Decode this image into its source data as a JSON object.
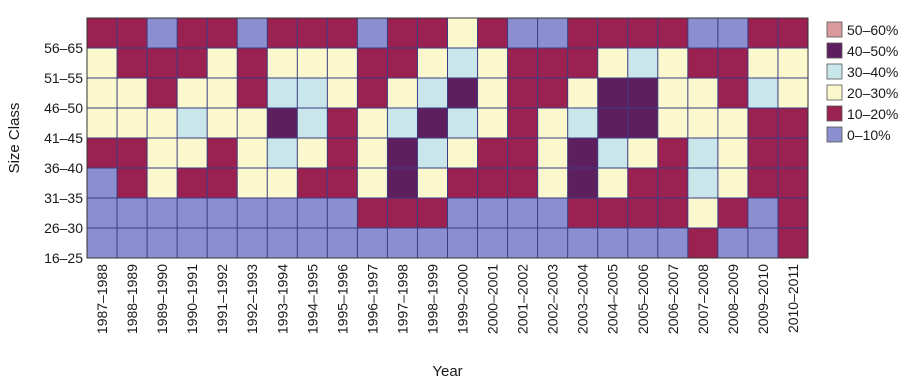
{
  "chart_data": {
    "type": "heatmap",
    "title": "",
    "xlabel": "Year",
    "ylabel": "Size Class",
    "x": [
      "1987–1988",
      "1988–1989",
      "1989–1990",
      "1990–1991",
      "1991–1992",
      "1992–1993",
      "1993–1994",
      "1994–1995",
      "1995–1996",
      "1996–1997",
      "1997–1998",
      "1998–1999",
      "1999–2000",
      "2000–2001",
      "2001–2002",
      "2002–2003",
      "2003–2004",
      "2004–2005",
      "2005–2006",
      "2006–2007",
      "2007–2008",
      "2008–2009",
      "2009–2010",
      "2010–2011"
    ],
    "y": [
      "16–25",
      "26–30",
      "31–35",
      "36–40",
      "41–45",
      "46–50",
      "51–55",
      "56–65"
    ],
    "legend": {
      "position": "right",
      "entries": [
        {
          "label": "50–60%",
          "color": "#d99a9c"
        },
        {
          "label": "40–50%",
          "color": "#5e1f5f"
        },
        {
          "label": "30–40%",
          "color": "#c9e7ea"
        },
        {
          "label": "20–30%",
          "color": "#fbf8ce"
        },
        {
          "label": "10–20%",
          "color": "#9a2150"
        },
        {
          "label": "0–10%",
          "color": "#8c8fcf"
        }
      ]
    },
    "grid": true,
    "values": [
      [
        0,
        0,
        0,
        0,
        0,
        0,
        0,
        0,
        0,
        0,
        0,
        0,
        0,
        0,
        0,
        0,
        0,
        0,
        0,
        0,
        1,
        0,
        0,
        1
      ],
      [
        0,
        0,
        0,
        0,
        0,
        0,
        0,
        0,
        0,
        1,
        1,
        1,
        0,
        0,
        0,
        0,
        1,
        1,
        1,
        1,
        2,
        1,
        0,
        1
      ],
      [
        0,
        1,
        2,
        1,
        1,
        2,
        2,
        1,
        1,
        2,
        4,
        2,
        1,
        1,
        1,
        2,
        4,
        2,
        1,
        1,
        3,
        2,
        1,
        1
      ],
      [
        1,
        1,
        2,
        2,
        1,
        2,
        3,
        2,
        1,
        2,
        4,
        3,
        2,
        1,
        1,
        2,
        4,
        3,
        2,
        1,
        3,
        2,
        1,
        1
      ],
      [
        2,
        2,
        2,
        3,
        2,
        2,
        4,
        3,
        1,
        2,
        3,
        4,
        3,
        2,
        1,
        2,
        3,
        4,
        4,
        2,
        2,
        2,
        1,
        1
      ],
      [
        2,
        2,
        1,
        2,
        2,
        1,
        3,
        3,
        2,
        1,
        2,
        3,
        4,
        2,
        1,
        1,
        2,
        4,
        4,
        2,
        2,
        1,
        3,
        2
      ],
      [
        2,
        1,
        1,
        1,
        2,
        1,
        2,
        2,
        2,
        1,
        1,
        2,
        3,
        2,
        1,
        1,
        1,
        2,
        3,
        2,
        1,
        1,
        2,
        2
      ],
      [
        1,
        1,
        0,
        1,
        1,
        0,
        1,
        1,
        1,
        0,
        1,
        1,
        2,
        1,
        0,
        0,
        1,
        1,
        1,
        1,
        0,
        0,
        1,
        1
      ]
    ]
  }
}
